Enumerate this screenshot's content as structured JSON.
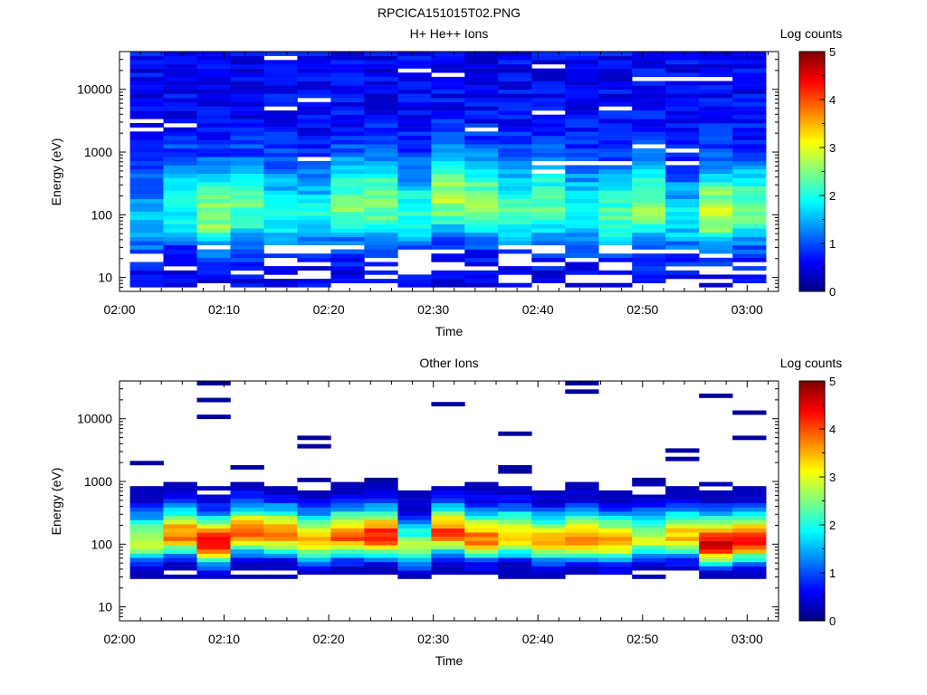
{
  "figure": {
    "title": "RPCICA151015T02.PNG"
  },
  "panels": [
    {
      "title": "H+ He++ Ions",
      "colorbar_label": "Log counts"
    },
    {
      "title": "Other Ions",
      "colorbar_label": "Log counts"
    }
  ],
  "chart_data": [
    {
      "type": "heatmap",
      "title": "H+ He++ Ions",
      "xlabel": "Time",
      "ylabel": "Energy (eV)",
      "y_scale": "log",
      "ylim": [
        6,
        40000
      ],
      "x_range": [
        "02:00",
        "03:03"
      ],
      "x_ticks": [
        "02:00",
        "02:10",
        "02:20",
        "02:30",
        "02:40",
        "02:50",
        "03:00"
      ],
      "y_ticks": [
        "10",
        "100",
        "1000",
        "10000"
      ],
      "colorbar": {
        "label": "Log counts",
        "range": [
          0,
          5
        ],
        "ticks": [
          "0",
          "1",
          "2",
          "3",
          "4",
          "5"
        ]
      },
      "time_bins_start_min": [
        1,
        4.2,
        7.4,
        10.6,
        13.8,
        17,
        20.2,
        23.4,
        26.6,
        29.8,
        33,
        36.2,
        39.4,
        42.6,
        45.8,
        49,
        52.2,
        55.4,
        58.6
      ],
      "bin_width_min": 3.2,
      "peak_energy_eV": [
        70,
        120,
        90,
        110,
        100,
        90,
        130,
        150,
        100,
        160,
        140,
        110,
        130,
        100,
        90,
        130,
        80,
        100,
        110
      ],
      "peak_log_counts": [
        1.5,
        2.0,
        2.6,
        2.3,
        2.0,
        1.9,
        2.4,
        2.6,
        2.1,
        2.7,
        2.6,
        2.2,
        2.4,
        2.0,
        2.3,
        2.6,
        1.8,
        2.9,
        2.5
      ]
    },
    {
      "type": "heatmap",
      "title": "Other Ions",
      "xlabel": "Time",
      "ylabel": "Energy (eV)",
      "y_scale": "log",
      "ylim": [
        6,
        40000
      ],
      "x_range": [
        "02:00",
        "03:03"
      ],
      "x_ticks": [
        "02:00",
        "02:10",
        "02:20",
        "02:30",
        "02:40",
        "02:50",
        "03:00"
      ],
      "y_ticks": [
        "10",
        "100",
        "1000",
        "10000"
      ],
      "colorbar": {
        "label": "Log counts",
        "range": [
          0,
          5
        ],
        "ticks": [
          "0",
          "1",
          "2",
          "3",
          "4",
          "5"
        ]
      },
      "time_bins_start_min": [
        1,
        4.2,
        7.4,
        10.6,
        13.8,
        17,
        20.2,
        23.4,
        26.6,
        29.8,
        33,
        36.2,
        39.4,
        42.6,
        45.8,
        49,
        52.2,
        55.4,
        58.6
      ],
      "bin_width_min": 3.2,
      "peak_energy_eV": [
        110,
        140,
        100,
        150,
        140,
        110,
        130,
        130,
        90,
        150,
        120,
        130,
        110,
        120,
        110,
        120,
        130,
        100,
        110
      ],
      "peak_log_counts": [
        2.9,
        3.8,
        4.4,
        3.8,
        3.7,
        3.4,
        3.9,
        4.3,
        2.6,
        4.0,
        3.8,
        3.5,
        3.5,
        3.8,
        3.5,
        2.9,
        3.4,
        4.6,
        4.2
      ]
    }
  ]
}
